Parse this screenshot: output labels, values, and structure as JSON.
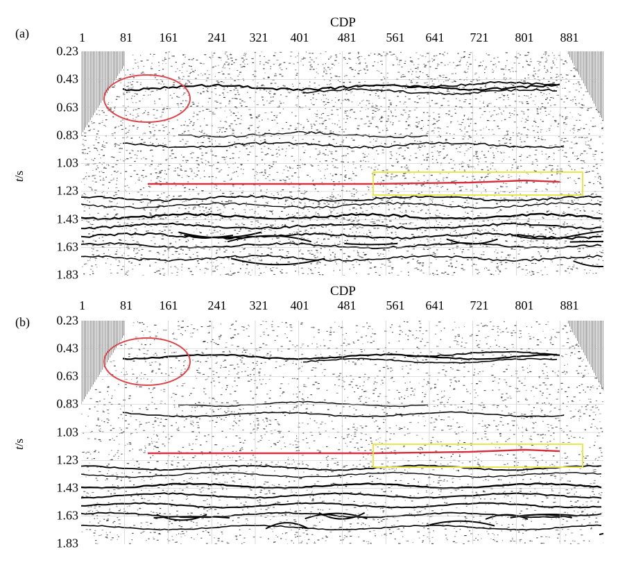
{
  "figure": {
    "x_axis_title": "CDP",
    "y_axis_label_var": "t",
    "y_axis_label_unit": "/s",
    "cdp_ticks": [
      "1",
      "81",
      "161",
      "241",
      "321",
      "401",
      "481",
      "561",
      "641",
      "721",
      "801",
      "881"
    ],
    "time_ticks": [
      "0.23",
      "0.43",
      "0.63",
      "0.83",
      "1.03",
      "1.23",
      "1.43",
      "1.63",
      "1.83"
    ],
    "panels": [
      {
        "label": "(a)",
        "noise_level": "high"
      },
      {
        "label": "(b)",
        "noise_level": "low"
      }
    ],
    "colors": {
      "ellipse": "#d9454b",
      "horizon": "#d43040",
      "box": "#e8e84a",
      "grid": "#c0c0c0",
      "trace": "#000000"
    }
  }
}
